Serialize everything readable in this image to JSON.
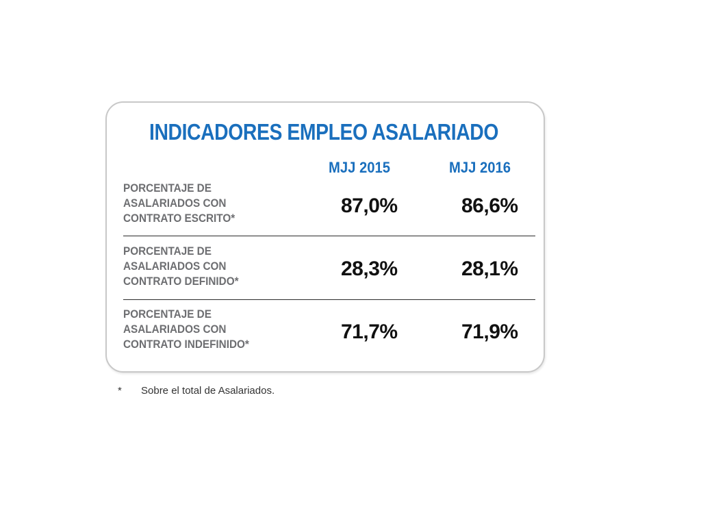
{
  "table": {
    "title": "INDICADORES EMPLEO ASALARIADO",
    "columns": [
      "MJJ 2015",
      "MJJ 2016"
    ],
    "rows": [
      {
        "label_lines": [
          "PORCENTAJE DE",
          "ASALARIADOS CON",
          "CONTRATO ESCRITO*"
        ],
        "values": [
          "87,0%",
          "86,6%"
        ]
      },
      {
        "label_lines": [
          "PORCENTAJE DE",
          "ASALARIADOS CON",
          "CONTRATO DEFINIDO*"
        ],
        "values": [
          "28,3%",
          "28,1%"
        ]
      },
      {
        "label_lines": [
          "PORCENTAJE DE",
          "ASALARIADOS CON",
          "CONTRATO INDEFINIDO*"
        ],
        "values": [
          "71,7%",
          "71,9%"
        ]
      }
    ]
  },
  "footnote": {
    "mark": "*",
    "text": "Sobre el total de Asalariados."
  },
  "colors": {
    "accent_blue": "#1a6fbd",
    "label_gray": "#6d6e71",
    "value_black": "#111111",
    "border_gray": "#c8c8c8"
  }
}
